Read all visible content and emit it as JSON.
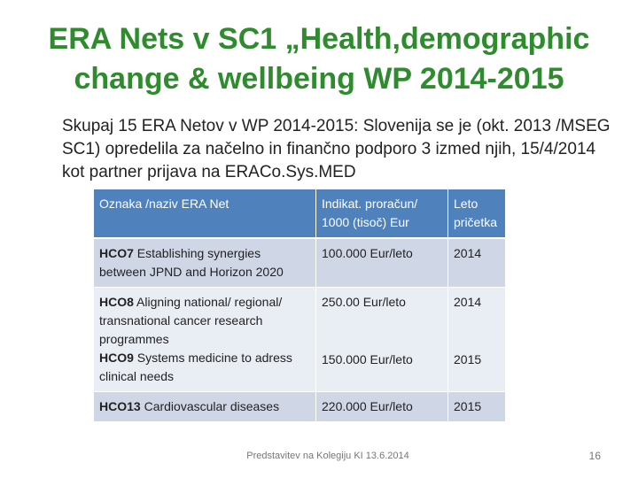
{
  "slide": {
    "title": "ERA Nets v  SC1 „Health,demographic change & wellbeing WP 2014-2015",
    "bullet": "Skupaj 15 ERA Netov v WP 2014-2015: Slovenija se je  (okt. 2013 /MSEG SC1) opredelila za načelno in finančno podporo 3 izmed njih, 15/4/2014  kot partner prijava na ERACo.Sys.MED",
    "footer": "Predstavitev na Kolegiju KI 13.6.2014",
    "page_number": "16"
  },
  "table": {
    "headers": [
      "Oznaka /naziv ERA  Net",
      "Indikat. proračun/ 1000 (tisoč)  Eur",
      " Leto pričetka"
    ],
    "rows": [
      {
        "code": "HCO7",
        "name": " Establishing synergies between JPND  and Horizon 2020",
        "budget": "100.000 Eur/leto",
        "year": "2014"
      },
      {
        "code": "HCO8",
        "name": " Aligning national/ regional/ transnational cancer research  programmes",
        "budget": "250.00 Eur/leto",
        "year": "2014",
        "code2": "HCO9",
        "name2": " Systems medicine to adress clinical needs",
        "budget2": "150.000 Eur/leto",
        "year2": "2015"
      },
      {
        "code": "HCO13",
        "name": " Cardiovascular diseases",
        "budget": " 220.000 Eur/leto",
        "year": "2015"
      }
    ]
  }
}
